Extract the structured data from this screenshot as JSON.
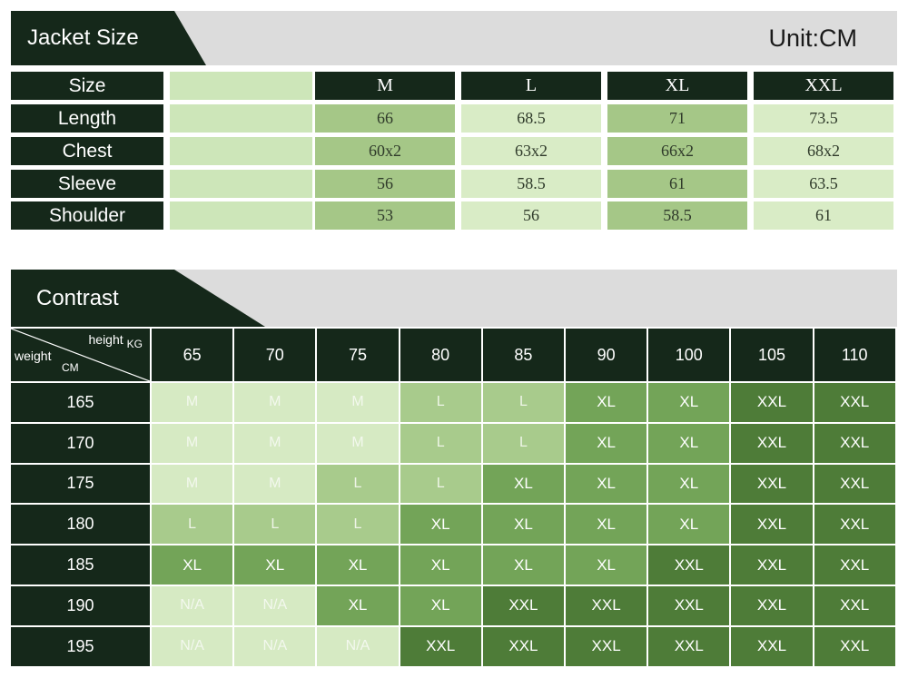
{
  "size_chart": {
    "title": "Jacket Size",
    "unit": "Unit:CM",
    "row_label_header": "Size",
    "sizes": [
      "M",
      "L",
      "XL",
      "XXL"
    ],
    "rows": [
      {
        "label": "Length",
        "values": [
          "66",
          "68.5",
          "71",
          "73.5"
        ]
      },
      {
        "label": "Chest",
        "values": [
          "60x2",
          "63x2",
          "66x2",
          "68x2"
        ]
      },
      {
        "label": "Sleeve",
        "values": [
          "56",
          "58.5",
          "61",
          "63.5"
        ]
      },
      {
        "label": "Shoulder",
        "values": [
          "53",
          "56",
          "58.5",
          "61"
        ]
      }
    ]
  },
  "contrast_chart": {
    "title": "Contrast",
    "corner": {
      "top_label": "height",
      "top_unit": "KG",
      "left_label": "weight",
      "left_unit": "CM"
    },
    "columns": [
      "65",
      "70",
      "75",
      "80",
      "85",
      "90",
      "100",
      "105",
      "110"
    ],
    "rows": [
      {
        "label": "165",
        "cells": [
          "M",
          "M",
          "M",
          "L",
          "L",
          "XL",
          "XL",
          "XXL",
          "XXL"
        ]
      },
      {
        "label": "170",
        "cells": [
          "M",
          "M",
          "M",
          "L",
          "L",
          "XL",
          "XL",
          "XXL",
          "XXL"
        ]
      },
      {
        "label": "175",
        "cells": [
          "M",
          "M",
          "L",
          "L",
          "XL",
          "XL",
          "XL",
          "XXL",
          "XXL"
        ]
      },
      {
        "label": "180",
        "cells": [
          "L",
          "L",
          "L",
          "XL",
          "XL",
          "XL",
          "XL",
          "XXL",
          "XXL"
        ]
      },
      {
        "label": "185",
        "cells": [
          "XL",
          "XL",
          "XL",
          "XL",
          "XL",
          "XL",
          "XXL",
          "XXL",
          "XXL"
        ]
      },
      {
        "label": "190",
        "cells": [
          "N/A",
          "N/A",
          "XL",
          "XL",
          "XXL",
          "XXL",
          "XXL",
          "XXL",
          "XXL"
        ]
      },
      {
        "label": "195",
        "cells": [
          "N/A",
          "N/A",
          "N/A",
          "XXL",
          "XXL",
          "XXL",
          "XXL",
          "XXL",
          "XXL"
        ]
      }
    ]
  },
  "colors": {
    "header_dark": "#15281a",
    "size_M": "#d6eac3",
    "size_L": "#a8cb8c",
    "size_XL": "#73a458",
    "size_XXL": "#4e7c38"
  }
}
